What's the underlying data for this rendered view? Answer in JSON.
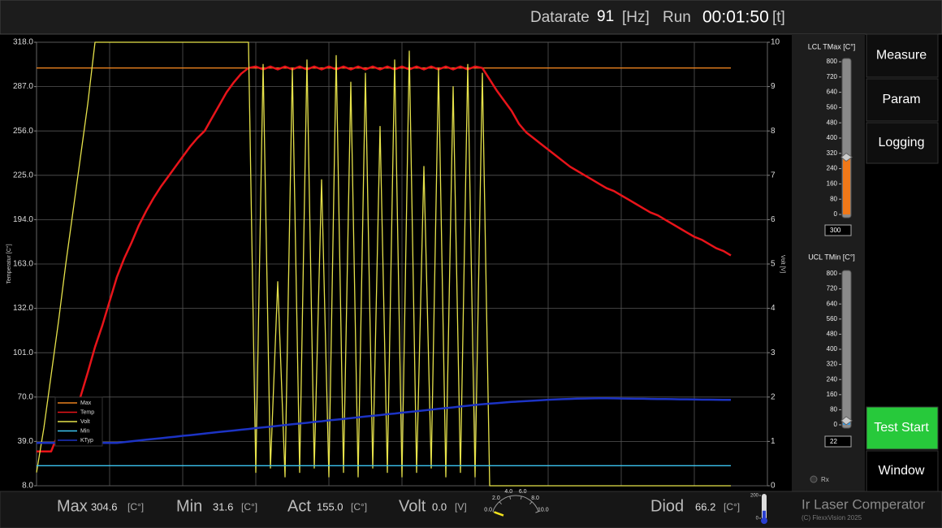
{
  "header": {
    "datarate_label": "Datarate",
    "datarate": "91",
    "datarate_unit": "[Hz]",
    "run_label": "Run",
    "run_time": "00:01:50",
    "run_unit": "[t]"
  },
  "chart_data": {
    "type": "line",
    "y_label": "Temperatur [C°]",
    "y2_label": "Volt [V]",
    "x": [
      0,
      1,
      2,
      3,
      4,
      5,
      6,
      7,
      8,
      9,
      10,
      11,
      12,
      13,
      14,
      15,
      16,
      17,
      18,
      19,
      20,
      21,
      22,
      23,
      24,
      25,
      26,
      27,
      28,
      29,
      30,
      31,
      32,
      33,
      34,
      35,
      36,
      37,
      38,
      39,
      40,
      41,
      42,
      43,
      44,
      45,
      46,
      47,
      48,
      49,
      50,
      51,
      52,
      53,
      54,
      55,
      56,
      57,
      58,
      59,
      60,
      61,
      62,
      63,
      64,
      65,
      66,
      67,
      68,
      69,
      70,
      71,
      72,
      73,
      74,
      75,
      76,
      77,
      78,
      79,
      80,
      81,
      82,
      83,
      84,
      85,
      86,
      87,
      88,
      89,
      90,
      91,
      92,
      93,
      94,
      95
    ],
    "xlim": [
      0,
      100
    ],
    "ylim": [
      8,
      318
    ],
    "yticks": [
      {
        "value": 8,
        "label": "8.0"
      },
      {
        "value": 39,
        "label": "39.0"
      },
      {
        "value": 70,
        "label": "70.0"
      },
      {
        "value": 101,
        "label": "101.0"
      },
      {
        "value": 132,
        "label": "132.0"
      },
      {
        "value": 163,
        "label": "163.0"
      },
      {
        "value": 194,
        "label": "194.0"
      },
      {
        "value": 225,
        "label": "225.0"
      },
      {
        "value": 256,
        "label": "256.0"
      },
      {
        "value": 287,
        "label": "287.0"
      },
      {
        "value": 318,
        "label": "318.0"
      }
    ],
    "y2lim": [
      0,
      10
    ],
    "y2ticks": [
      0,
      1,
      2,
      3,
      4,
      5,
      6,
      7,
      8,
      9,
      10
    ],
    "grid": true,
    "legend": "lower left",
    "series": [
      {
        "name": "Max",
        "color": "#e8801e",
        "values": [
          300,
          300,
          300,
          300,
          300,
          300,
          300,
          300,
          300,
          300,
          300,
          300,
          300,
          300,
          300,
          300,
          300,
          300,
          300,
          300,
          300,
          300,
          300,
          300,
          300,
          300,
          300,
          300,
          300,
          300,
          300,
          300,
          300,
          300,
          300,
          300,
          300,
          300,
          300,
          300,
          300,
          300,
          300,
          300,
          300,
          300,
          300,
          300,
          300,
          300,
          300,
          300,
          300,
          300,
          300,
          300,
          300,
          300,
          300,
          300,
          300,
          300,
          300,
          300,
          300,
          300,
          300,
          300,
          300,
          300,
          300,
          300,
          300,
          300,
          300,
          300,
          300,
          300,
          300,
          300,
          300,
          300,
          300,
          300,
          300,
          300,
          300,
          300,
          300,
          300,
          300,
          300,
          300,
          300,
          300,
          300
        ]
      },
      {
        "name": "Temp",
        "color": "#e8141a",
        "values": [
          32,
          32,
          32,
          45,
          55,
          63,
          70,
          87,
          105,
          120,
          137,
          154,
          167,
          178,
          190,
          200,
          209,
          217,
          224,
          231,
          238,
          245,
          251,
          256,
          265,
          274,
          283,
          290,
          296,
          300,
          301,
          299,
          301,
          299,
          301,
          299,
          301,
          299,
          301,
          299,
          301,
          299,
          301,
          299,
          301,
          299,
          301,
          299,
          301,
          299,
          301,
          299,
          301,
          299,
          301,
          299,
          301,
          299,
          301,
          299,
          301,
          300,
          292,
          284,
          277,
          270,
          261,
          255,
          251,
          247,
          243,
          239,
          235,
          231,
          228,
          225,
          222,
          219,
          216,
          214,
          211,
          208,
          205,
          202,
          199,
          197,
          194,
          191,
          188,
          185,
          182,
          180,
          177,
          174,
          172,
          169
        ]
      },
      {
        "name": "Volt",
        "color": "#e6e24a",
        "axis": "y2",
        "values": [
          0.3,
          1.3,
          2.5,
          3.7,
          5.0,
          6.2,
          7.4,
          8.6,
          10,
          10,
          10,
          10,
          10,
          10,
          10,
          10,
          10,
          10,
          10,
          10,
          10,
          10,
          10,
          10,
          10,
          10,
          10,
          10,
          10,
          10,
          0.3,
          9.5,
          0.4,
          4.6,
          0.2,
          9.4,
          0.3,
          9.6,
          0.4,
          6.9,
          0.2,
          9.7,
          0.3,
          9.1,
          0.2,
          9.3,
          0.4,
          8.1,
          0.3,
          9.6,
          0.2,
          9.8,
          0.3,
          7.2,
          0.4,
          9.4,
          0.2,
          9.0,
          0.3,
          9.5,
          0.2,
          9.3,
          0,
          0,
          0,
          0,
          0,
          0,
          0,
          0,
          0,
          0,
          0,
          0,
          0,
          0,
          0,
          0,
          0,
          0,
          0,
          0,
          0,
          0,
          0,
          0,
          0,
          0,
          0,
          0,
          0,
          0,
          0,
          0,
          0,
          0
        ]
      },
      {
        "name": "Min",
        "color": "#3cc4f0",
        "values": [
          22,
          22,
          22,
          22,
          22,
          22,
          22,
          22,
          22,
          22,
          22,
          22,
          22,
          22,
          22,
          22,
          22,
          22,
          22,
          22,
          22,
          22,
          22,
          22,
          22,
          22,
          22,
          22,
          22,
          22,
          22,
          22,
          22,
          22,
          22,
          22,
          22,
          22,
          22,
          22,
          22,
          22,
          22,
          22,
          22,
          22,
          22,
          22,
          22,
          22,
          22,
          22,
          22,
          22,
          22,
          22,
          22,
          22,
          22,
          22,
          22,
          22,
          22,
          22,
          22,
          22,
          22,
          22,
          22,
          22,
          22,
          22,
          22,
          22,
          22,
          22,
          22,
          22,
          22,
          22,
          22,
          22,
          22,
          22,
          22,
          22,
          22,
          22,
          22,
          22,
          22,
          22,
          22,
          22,
          22,
          22
        ]
      },
      {
        "name": "KTyp",
        "color": "#1c33c4",
        "values": [
          38,
          38,
          38,
          38,
          38,
          38,
          38,
          38,
          38,
          38,
          38,
          38,
          38.5,
          39.1,
          39.6,
          40.2,
          40.7,
          41.2,
          41.8,
          42.3,
          42.9,
          43.4,
          43.9,
          44.5,
          45,
          45.6,
          46.1,
          46.6,
          47.2,
          47.7,
          48.3,
          48.8,
          49.3,
          49.9,
          50.4,
          51,
          51.5,
          52,
          52.6,
          53.1,
          53.7,
          54.2,
          54.7,
          55.3,
          55.8,
          56.4,
          56.9,
          57.4,
          58,
          58.5,
          59.1,
          59.6,
          60.1,
          60.7,
          61.2,
          61.8,
          62.3,
          62.8,
          63.4,
          63.9,
          64.5,
          65,
          65.4,
          65.8,
          66.2,
          66.6,
          66.9,
          67.2,
          67.5,
          67.8,
          68.1,
          68.3,
          68.5,
          68.7,
          68.9,
          69,
          69.1,
          69.2,
          69.2,
          69.1,
          69,
          68.9,
          68.8,
          68.8,
          68.7,
          68.6,
          68.6,
          68.5,
          68.4,
          68.4,
          68.3,
          68.2,
          68.2,
          68.1,
          68,
          68
        ]
      }
    ]
  },
  "limits": [
    {
      "title": "LCL TMax [C°]",
      "lim": [
        0,
        800
      ],
      "ticks": [
        0,
        80,
        160,
        240,
        320,
        400,
        480,
        560,
        640,
        720,
        800
      ],
      "value": 300,
      "color": "#f07818"
    },
    {
      "title": "UCL TMin [C°]",
      "lim": [
        0,
        800
      ],
      "ticks": [
        0,
        80,
        160,
        240,
        320,
        400,
        480,
        560,
        640,
        720,
        800
      ],
      "value": 22,
      "color": "#3a9ee8"
    }
  ],
  "rx_label": "Rx",
  "buttons": [
    "Measure",
    "Param",
    "Logging",
    "Test Start",
    "Window"
  ],
  "status": [
    {
      "label": "Max",
      "value": "304.6",
      "unit": "[C°]"
    },
    {
      "label": "Min",
      "value": "31.6",
      "unit": "[C°]"
    },
    {
      "label": "Act",
      "value": "155.0",
      "unit": "[C°]"
    },
    {
      "label": "Volt",
      "value": "0.0",
      "unit": "[V]"
    },
    {
      "label": "Diod",
      "value": "66.2",
      "unit": "[C°]"
    }
  ],
  "volt_gauge": {
    "lim": [
      0,
      10
    ],
    "value": 0,
    "ticks": [
      {
        "value": 0,
        "label": "0.0"
      },
      {
        "value": 2,
        "label": "2.0"
      },
      {
        "value": 4,
        "label": "4.0"
      },
      {
        "value": 6,
        "label": "6.0"
      },
      {
        "value": 8,
        "label": "8.0"
      },
      {
        "value": 10,
        "label": "10.0"
      }
    ]
  },
  "diode_gauge": {
    "lim": [
      0,
      200
    ],
    "value": 66.2,
    "ticks": [
      0,
      200
    ]
  },
  "footer": {
    "product": "Ir Laser Comperator",
    "copyright": "(C) FlexxVision 2025"
  }
}
